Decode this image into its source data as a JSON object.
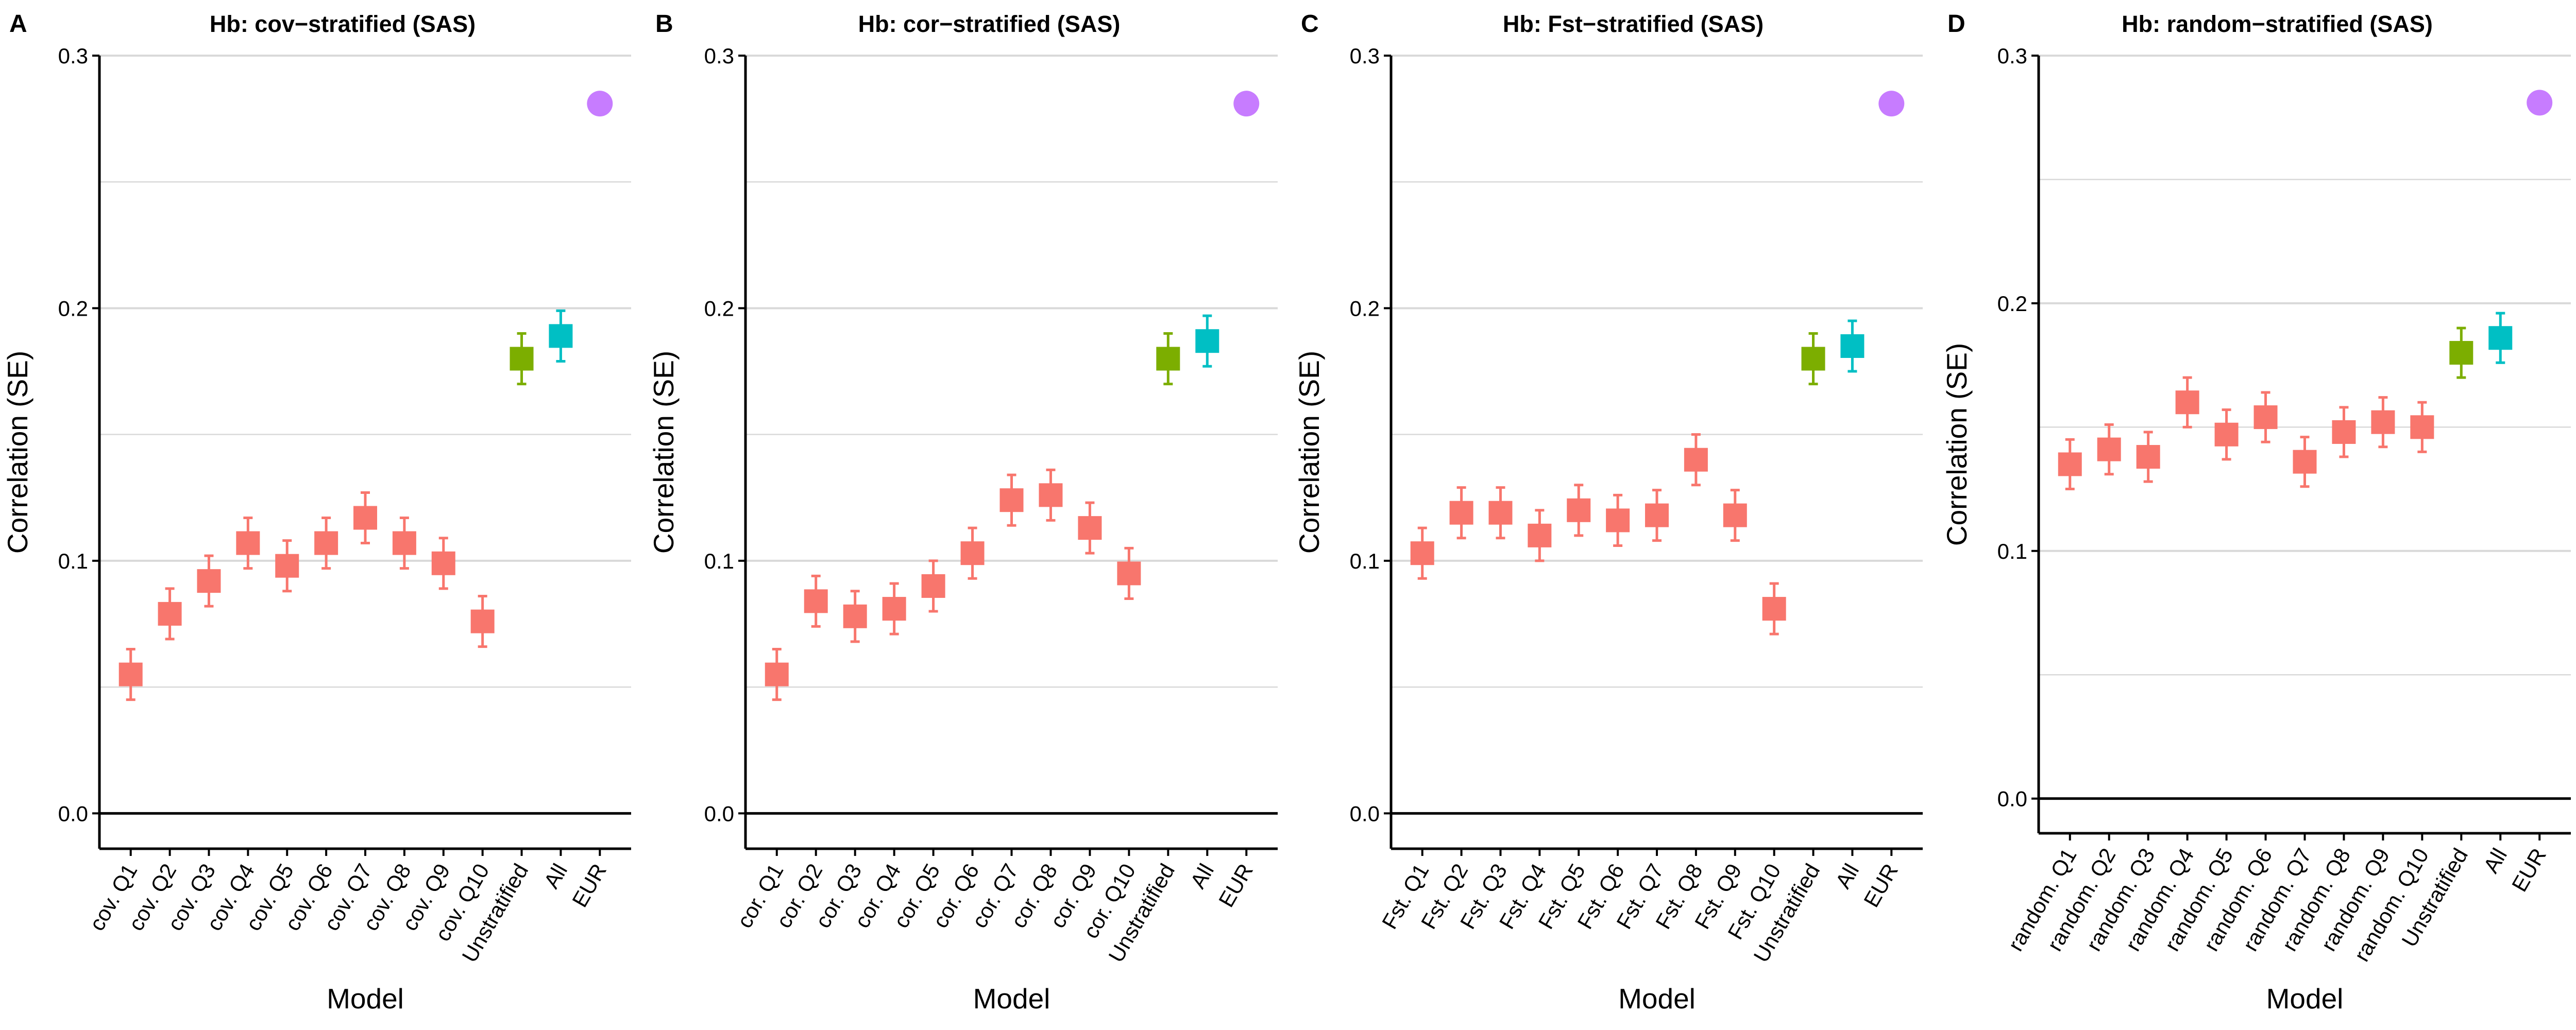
{
  "colors": {
    "quantile": "#F8766D",
    "unstratified": "#7CAE00",
    "all": "#00BFC4",
    "eur": "#C77CFF",
    "grid": "#D9D9D9",
    "axis": "#000000"
  },
  "chart_data": [
    {
      "type": "scatter",
      "panel_label": "A",
      "title": "Hb: cov−stratified (SAS)",
      "xlabel": "Model",
      "ylabel": "Correlation (SE)",
      "ylim": [
        -0.014,
        0.3
      ],
      "yticks": [
        "0.0",
        "0.1",
        "0.2",
        "0.3"
      ],
      "grid": "horizontal",
      "legend": "none",
      "categories": [
        "cov. Q1",
        "cov. Q2",
        "cov. Q3",
        "cov. Q4",
        "cov. Q5",
        "cov. Q6",
        "cov. Q7",
        "cov. Q8",
        "cov. Q9",
        "cov. Q10",
        "Unstratified",
        "All",
        "EUR"
      ],
      "values": [
        0.055,
        0.079,
        0.092,
        0.107,
        0.098,
        0.107,
        0.117,
        0.107,
        0.099,
        0.076,
        0.18,
        0.189,
        0.281
      ],
      "se": [
        0.01,
        0.01,
        0.01,
        0.01,
        0.01,
        0.01,
        0.01,
        0.01,
        0.01,
        0.01,
        0.01,
        0.01,
        0
      ],
      "groups": [
        "quantile",
        "quantile",
        "quantile",
        "quantile",
        "quantile",
        "quantile",
        "quantile",
        "quantile",
        "quantile",
        "quantile",
        "unstratified",
        "all",
        "eur"
      ]
    },
    {
      "type": "scatter",
      "panel_label": "B",
      "title": "Hb: cor−stratified (SAS)",
      "xlabel": "Model",
      "ylabel": "Correlation (SE)",
      "ylim": [
        -0.014,
        0.3
      ],
      "yticks": [
        "0.0",
        "0.1",
        "0.2",
        "0.3"
      ],
      "grid": "horizontal",
      "legend": "none",
      "categories": [
        "cor. Q1",
        "cor. Q2",
        "cor. Q3",
        "cor. Q4",
        "cor. Q5",
        "cor. Q6",
        "cor. Q7",
        "cor. Q8",
        "cor. Q9",
        "cor. Q10",
        "Unstratified",
        "All",
        "EUR"
      ],
      "values": [
        0.055,
        0.084,
        0.078,
        0.081,
        0.09,
        0.103,
        0.124,
        0.126,
        0.113,
        0.095,
        0.18,
        0.187,
        0.281
      ],
      "se": [
        0.01,
        0.01,
        0.01,
        0.01,
        0.01,
        0.01,
        0.01,
        0.01,
        0.01,
        0.01,
        0.01,
        0.01,
        0
      ],
      "groups": [
        "quantile",
        "quantile",
        "quantile",
        "quantile",
        "quantile",
        "quantile",
        "quantile",
        "quantile",
        "quantile",
        "quantile",
        "unstratified",
        "all",
        "eur"
      ]
    },
    {
      "type": "scatter",
      "panel_label": "C",
      "title": "Hb: Fst−stratified (SAS)",
      "xlabel": "Model",
      "ylabel": "Correlation (SE)",
      "ylim": [
        -0.014,
        0.3
      ],
      "yticks": [
        "0.0",
        "0.1",
        "0.2",
        "0.3"
      ],
      "grid": "horizontal",
      "legend": "none",
      "categories": [
        "Fst. Q1",
        "Fst. Q2",
        "Fst. Q3",
        "Fst. Q4",
        "Fst. Q5",
        "Fst. Q6",
        "Fst. Q7",
        "Fst. Q8",
        "Fst. Q9",
        "Fst. Q10",
        "Unstratified",
        "All",
        "EUR"
      ],
      "values": [
        0.103,
        0.119,
        0.119,
        0.11,
        0.12,
        0.116,
        0.118,
        0.14,
        0.118,
        0.081,
        0.18,
        0.185,
        0.281
      ],
      "se": [
        0.01,
        0.01,
        0.01,
        0.01,
        0.01,
        0.01,
        0.01,
        0.01,
        0.01,
        0.01,
        0.01,
        0.01,
        0
      ],
      "groups": [
        "quantile",
        "quantile",
        "quantile",
        "quantile",
        "quantile",
        "quantile",
        "quantile",
        "quantile",
        "quantile",
        "quantile",
        "unstratified",
        "all",
        "eur"
      ]
    },
    {
      "type": "scatter",
      "panel_label": "D",
      "title": "Hb: random−stratified (SAS)",
      "xlabel": "Model",
      "ylabel": "Correlation (SE)",
      "ylim": [
        -0.014,
        0.3
      ],
      "yticks": [
        "0.0",
        "0.1",
        "0.2",
        "0.3"
      ],
      "grid": "horizontal",
      "legend": "none",
      "categories": [
        "random. Q1",
        "random. Q2",
        "random. Q3",
        "random. Q4",
        "random. Q5",
        "random. Q6",
        "random. Q7",
        "random. Q8",
        "random. Q9",
        "random. Q10",
        "Unstratified",
        "All",
        "EUR"
      ],
      "values": [
        0.135,
        0.141,
        0.138,
        0.16,
        0.147,
        0.154,
        0.136,
        0.148,
        0.152,
        0.15,
        0.18,
        0.186,
        0.281
      ],
      "se": [
        0.01,
        0.01,
        0.01,
        0.01,
        0.01,
        0.01,
        0.01,
        0.01,
        0.01,
        0.01,
        0.01,
        0.01,
        0
      ],
      "groups": [
        "quantile",
        "quantile",
        "quantile",
        "quantile",
        "quantile",
        "quantile",
        "quantile",
        "quantile",
        "quantile",
        "quantile",
        "unstratified",
        "all",
        "eur"
      ]
    }
  ]
}
